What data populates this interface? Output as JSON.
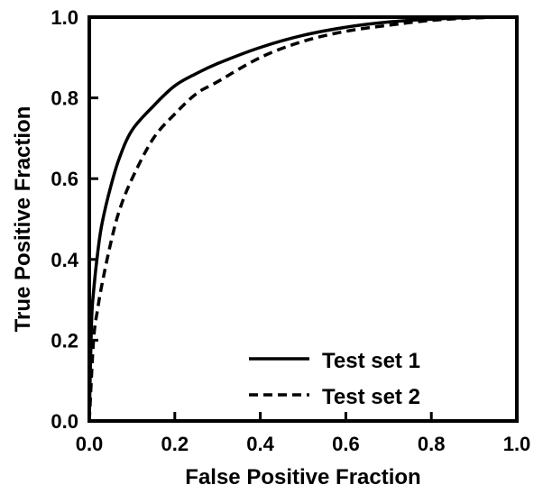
{
  "chart_data": {
    "type": "line",
    "title": "",
    "xlabel": "False Positive Fraction",
    "ylabel": "True Positive Fraction",
    "xlim": [
      0.0,
      1.0
    ],
    "ylim": [
      0.0,
      1.0
    ],
    "xticks": [
      "0.0",
      "0.2",
      "0.4",
      "0.6",
      "0.8",
      "1.0"
    ],
    "yticks": [
      "0.0",
      "0.2",
      "0.4",
      "0.6",
      "0.8",
      "1.0"
    ],
    "grid": false,
    "legend_position": "bottom-right",
    "series": [
      {
        "name": "Test set 1",
        "style": "solid",
        "color": "#000000",
        "x": [
          0.0,
          0.005,
          0.01,
          0.02,
          0.03,
          0.05,
          0.07,
          0.1,
          0.15,
          0.2,
          0.25,
          0.3,
          0.4,
          0.5,
          0.6,
          0.7,
          0.8,
          0.9,
          1.0
        ],
        "y": [
          0.0,
          0.24,
          0.32,
          0.42,
          0.49,
          0.58,
          0.65,
          0.72,
          0.78,
          0.83,
          0.86,
          0.885,
          0.925,
          0.955,
          0.975,
          0.988,
          0.995,
          0.999,
          1.0
        ]
      },
      {
        "name": "Test set 2",
        "style": "dashed",
        "color": "#000000",
        "x": [
          0.0,
          0.01,
          0.02,
          0.03,
          0.05,
          0.07,
          0.1,
          0.15,
          0.2,
          0.25,
          0.3,
          0.4,
          0.5,
          0.6,
          0.7,
          0.8,
          0.9,
          1.0
        ],
        "y": [
          0.0,
          0.2,
          0.28,
          0.34,
          0.44,
          0.52,
          0.6,
          0.7,
          0.76,
          0.81,
          0.84,
          0.9,
          0.94,
          0.965,
          0.98,
          0.992,
          0.998,
          1.0
        ]
      }
    ]
  }
}
